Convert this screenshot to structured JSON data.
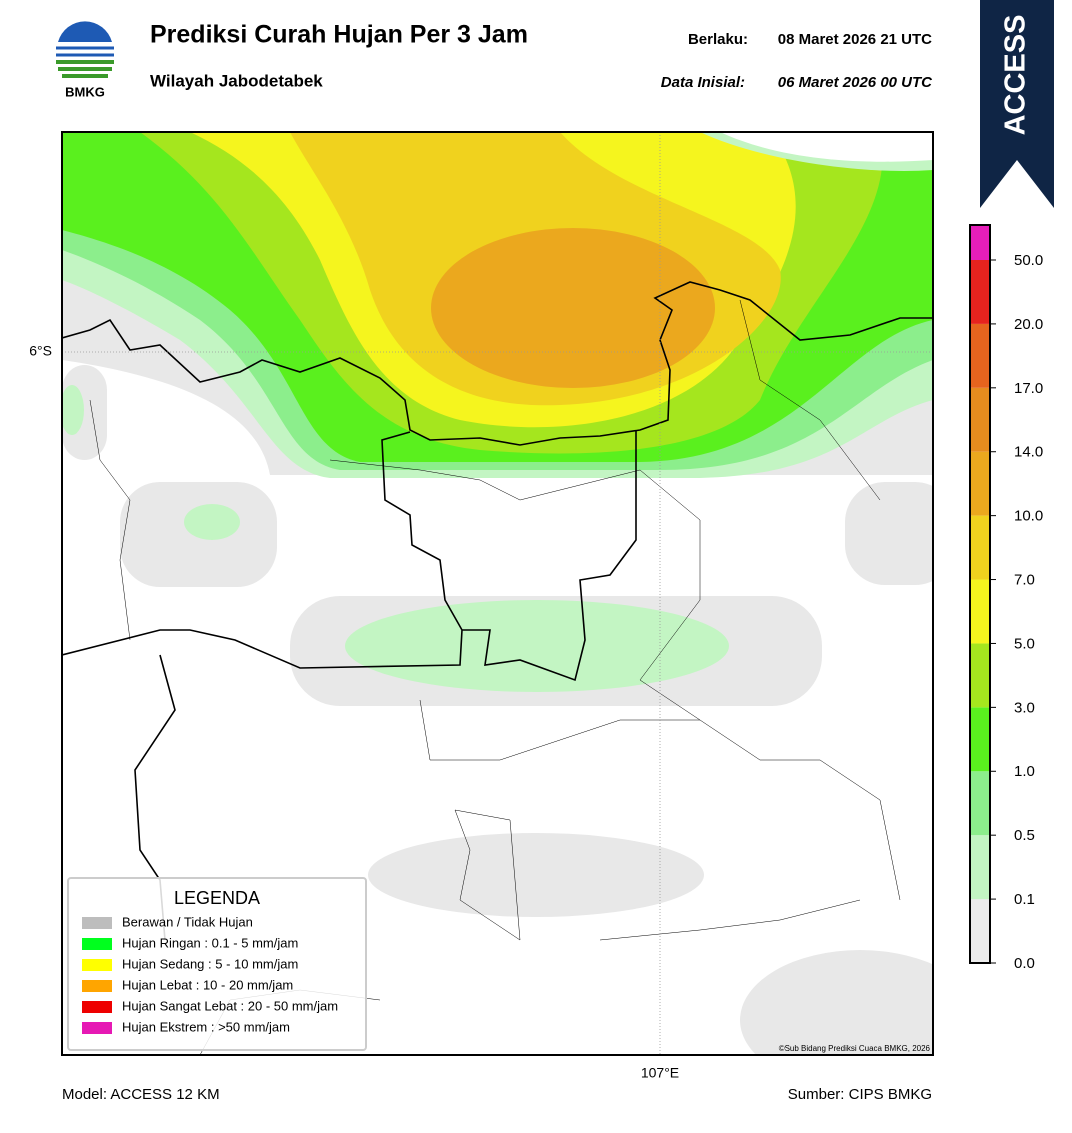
{
  "header": {
    "title": "Prediksi Curah Hujan Per 3 Jam",
    "subtitle": "Wilayah Jabodetabek",
    "logo_text": "BMKG",
    "valid_label": "Berlaku:",
    "valid_value": "08 Maret 2026 21 UTC",
    "init_label": "Data Inisial:",
    "init_value": "06 Maret 2026 00 UTC",
    "model_badge": "ACCESS"
  },
  "map": {
    "lat_label": "6°S",
    "lon_label": "107°E",
    "credit": "©Sub Bidang Prediksi Cuaca BMKG, 2026"
  },
  "legend": {
    "title": "LEGENDA",
    "items": [
      {
        "label": "Berawan / Tidak Hujan",
        "color": "#bdbdbd"
      },
      {
        "label": "Hujan Ringan : 0.1 - 5 mm/jam",
        "color": "#00ff1e"
      },
      {
        "label": "Hujan Sedang : 5 - 10 mm/jam",
        "color": "#ffff00"
      },
      {
        "label": "Hujan Lebat : 10 - 20 mm/jam",
        "color": "#ffa500"
      },
      {
        "label": "Hujan Sangat Lebat : 20 - 50 mm/jam",
        "color": "#ee0000"
      },
      {
        "label": "Hujan Ekstrem : >50 mm/jam",
        "color": "#e619b4"
      }
    ]
  },
  "colorbar": {
    "labels": [
      "0.0",
      "0.1",
      "0.5",
      "1.0",
      "3.0",
      "5.0",
      "7.0",
      "10.0",
      "14.0",
      "17.0",
      "20.0",
      "50.0"
    ],
    "colors": [
      "#ebebeb",
      "#c3f5c3",
      "#8cee8c",
      "#5af01e",
      "#a5e61e",
      "#f5f51e",
      "#f0d21e",
      "#eba81e",
      "#e68c1e",
      "#e6641e",
      "#e6231e",
      "#e61eb9"
    ]
  },
  "footer": {
    "model": "Model: ACCESS 12 KM",
    "source": "Sumber: CIPS BMKG"
  }
}
